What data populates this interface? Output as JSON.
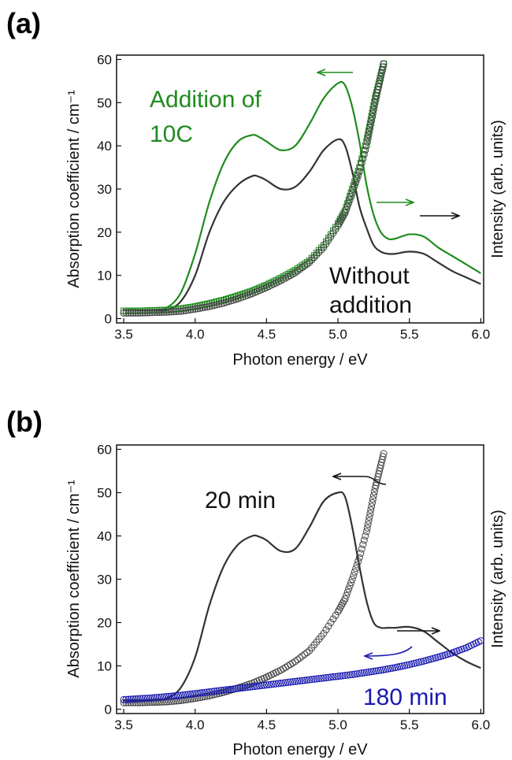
{
  "chart_data": [
    {
      "panel_label": "(a)",
      "type": "line",
      "xlabel": "Photon energy / eV",
      "ylabel": "Absorption coefficient  / cm⁻¹",
      "y2label": "Intensity (arb. units)",
      "xlim": [
        3.45,
        6.02
      ],
      "ylim": [
        -1,
        61
      ],
      "xticks": [
        "3.5",
        "4.0",
        "4.5",
        "5.0",
        "5.5",
        "6.0"
      ],
      "yticks": [
        "0",
        "10",
        "20",
        "30",
        "40",
        "50",
        "60"
      ],
      "colors": {
        "green": "#1f8c1f",
        "black": "#333333"
      },
      "annotations": [
        {
          "text": "Addition of",
          "color": "#1f8c1f"
        },
        {
          "text": "10C",
          "color": "#1f8c1f"
        },
        {
          "text": "Without",
          "color": "#111111"
        },
        {
          "text": "addition",
          "color": "#111111"
        }
      ],
      "arrows": [
        {
          "color": "#1f8c1f",
          "direction": "left",
          "points_to": "left axis"
        },
        {
          "color": "#1f8c1f",
          "direction": "right",
          "points_to": "right axis"
        },
        {
          "color": "#111111",
          "direction": "right",
          "points_to": "right axis"
        }
      ],
      "series": [
        {
          "name": "Addition of 10C",
          "style": "line",
          "color": "#1f8c1f",
          "x": [
            3.5,
            3.7,
            3.8,
            3.9,
            4.0,
            4.1,
            4.2,
            4.3,
            4.4,
            4.45,
            4.5,
            4.6,
            4.7,
            4.8,
            4.9,
            5.0,
            5.05,
            5.1,
            5.15,
            5.2,
            5.25,
            5.3,
            5.35,
            5.4,
            5.5,
            5.6,
            5.7,
            5.8,
            5.9,
            6.0
          ],
          "y": [
            2,
            2,
            2.5,
            6,
            15,
            27,
            36,
            41,
            42.5,
            42,
            41,
            39,
            40,
            45,
            51,
            54.5,
            54,
            49,
            41,
            31,
            24,
            20,
            18.5,
            18.5,
            19.5,
            19,
            16.5,
            14.5,
            12.5,
            10.5
          ]
        },
        {
          "name": "Without addition",
          "style": "line",
          "color": "#333333",
          "x": [
            3.5,
            3.7,
            3.8,
            3.9,
            4.0,
            4.1,
            4.2,
            4.3,
            4.4,
            4.45,
            4.5,
            4.6,
            4.7,
            4.8,
            4.9,
            5.0,
            5.05,
            5.1,
            5.15,
            5.2,
            5.25,
            5.3,
            5.35,
            5.4,
            5.5,
            5.6,
            5.7,
            5.8,
            5.9,
            6.0
          ],
          "y": [
            2,
            2,
            2,
            4,
            10,
            20,
            27,
            31,
            33,
            32.8,
            32,
            30,
            30.5,
            34,
            39,
            41.5,
            40,
            34,
            26,
            21,
            17,
            15.5,
            15,
            15,
            15.5,
            15,
            13,
            11,
            9.5,
            8
          ]
        },
        {
          "name": "Intensity (10C)",
          "style": "markers",
          "marker": "square",
          "color": "#1f8c1f",
          "x": [
            3.5,
            3.6,
            3.7,
            3.8,
            3.9,
            4.0,
            4.1,
            4.2,
            4.3,
            4.4,
            4.5,
            4.6,
            4.7,
            4.8,
            4.9,
            5.0,
            5.05,
            5.1,
            5.15,
            5.2,
            5.23,
            5.26,
            5.29,
            5.32
          ],
          "y": [
            1.8,
            1.8,
            1.9,
            2.0,
            2.3,
            2.8,
            3.5,
            4.3,
            5.3,
            6.4,
            7.8,
            9.4,
            11.2,
            13.4,
            17,
            22,
            25,
            30,
            35,
            41,
            46,
            51,
            55,
            59
          ]
        },
        {
          "name": "Intensity (without)",
          "style": "markers",
          "marker": "circle",
          "color": "#444444",
          "x": [
            3.5,
            3.6,
            3.7,
            3.8,
            3.9,
            4.0,
            4.1,
            4.2,
            4.3,
            4.4,
            4.5,
            4.6,
            4.7,
            4.8,
            4.9,
            5.0,
            5.05,
            5.1,
            5.15,
            5.2,
            5.23,
            5.26,
            5.29,
            5.32
          ],
          "y": [
            1.3,
            1.3,
            1.4,
            1.5,
            1.7,
            2.2,
            2.8,
            3.6,
            4.6,
            5.8,
            7.2,
            8.8,
            10.6,
            13,
            16.5,
            21.5,
            24.5,
            29,
            34,
            40,
            45,
            50,
            54.5,
            59
          ]
        }
      ]
    },
    {
      "panel_label": "(b)",
      "type": "line",
      "xlabel": "Photon energy / eV",
      "ylabel": "Absorption coefficient  / cm⁻¹",
      "y2label": "Intensity (arb. units)",
      "xlim": [
        3.45,
        6.02
      ],
      "ylim": [
        -1,
        61
      ],
      "xticks": [
        "3.5",
        "4.0",
        "4.5",
        "5.0",
        "5.5",
        "6.0"
      ],
      "yticks": [
        "0",
        "10",
        "20",
        "30",
        "40",
        "50",
        "60"
      ],
      "colors": {
        "blue": "#1a1ab0",
        "black": "#333333"
      },
      "annotations": [
        {
          "text": "20 min",
          "color": "#111111"
        },
        {
          "text": "180 min",
          "color": "#1a1ab0"
        }
      ],
      "arrows": [
        {
          "color": "#111111",
          "direction": "left",
          "points_to": "left axis"
        },
        {
          "color": "#111111",
          "direction": "right",
          "points_to": "right axis"
        },
        {
          "color": "#1a1ab0",
          "direction": "left",
          "points_to": "left axis"
        }
      ],
      "series": [
        {
          "name": "20 min",
          "style": "line",
          "color": "#333333",
          "x": [
            3.5,
            3.7,
            3.8,
            3.9,
            4.0,
            4.1,
            4.2,
            4.3,
            4.4,
            4.45,
            4.5,
            4.6,
            4.7,
            4.8,
            4.9,
            5.0,
            5.05,
            5.1,
            5.15,
            5.2,
            5.25,
            5.3,
            5.35,
            5.4,
            5.5,
            5.6,
            5.7,
            5.8,
            5.9,
            6.0
          ],
          "y": [
            2,
            2,
            2.5,
            5,
            12,
            24,
            33,
            38,
            40,
            39.8,
            39,
            36.5,
            37,
            42,
            48,
            50,
            49,
            42,
            33,
            25,
            20,
            18.8,
            18.8,
            18.8,
            19,
            18,
            15.5,
            13,
            11,
            9.5
          ]
        },
        {
          "name": "Intensity (20 min)",
          "style": "markers",
          "marker": "circle",
          "color": "#444444",
          "x": [
            3.5,
            3.6,
            3.7,
            3.8,
            3.9,
            4.0,
            4.1,
            4.2,
            4.3,
            4.4,
            4.5,
            4.6,
            4.7,
            4.8,
            4.9,
            5.0,
            5.05,
            5.1,
            5.15,
            5.2,
            5.23,
            5.26,
            5.29,
            5.32
          ],
          "y": [
            1.5,
            1.5,
            1.6,
            1.7,
            2.0,
            2.5,
            3.1,
            3.9,
            4.9,
            6.0,
            7.4,
            9.0,
            11,
            13.5,
            17.5,
            22.5,
            25.5,
            30,
            35,
            41,
            46,
            51,
            55,
            59
          ]
        },
        {
          "name": "Intensity (180 min)",
          "style": "markers",
          "marker": "circle",
          "color": "#1a1ab0",
          "x": [
            3.5,
            3.6,
            3.7,
            3.8,
            3.9,
            4.0,
            4.1,
            4.2,
            4.3,
            4.4,
            4.5,
            4.6,
            4.7,
            4.8,
            4.9,
            5.0,
            5.1,
            5.2,
            5.3,
            5.4,
            5.5,
            5.6,
            5.7,
            5.8,
            5.9,
            6.0
          ],
          "y": [
            2.2,
            2.4,
            2.6,
            2.9,
            3.2,
            3.6,
            4.0,
            4.4,
            4.8,
            5.2,
            5.6,
            6.0,
            6.4,
            6.8,
            7.2,
            7.6,
            8.0,
            8.5,
            9.0,
            9.6,
            10.3,
            11.1,
            12.0,
            13.0,
            14.2,
            15.8
          ]
        }
      ]
    }
  ]
}
